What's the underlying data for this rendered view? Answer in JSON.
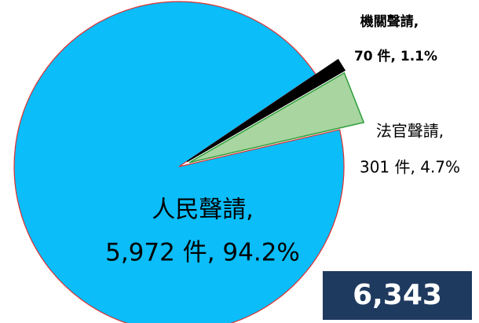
{
  "chart_data": {
    "type": "pie",
    "categories": [
      "人民聲請,",
      "法官聲請,",
      "機關聲請,"
    ],
    "values": [
      5972,
      301,
      70
    ],
    "value_labels": [
      "5,972 件, 94.2%",
      "301 件, 4.7%",
      "70 件, 1.1%"
    ],
    "colors": [
      "#0bbdf8",
      "#a8d5a0",
      "#000000"
    ],
    "total_label": "6,343"
  }
}
